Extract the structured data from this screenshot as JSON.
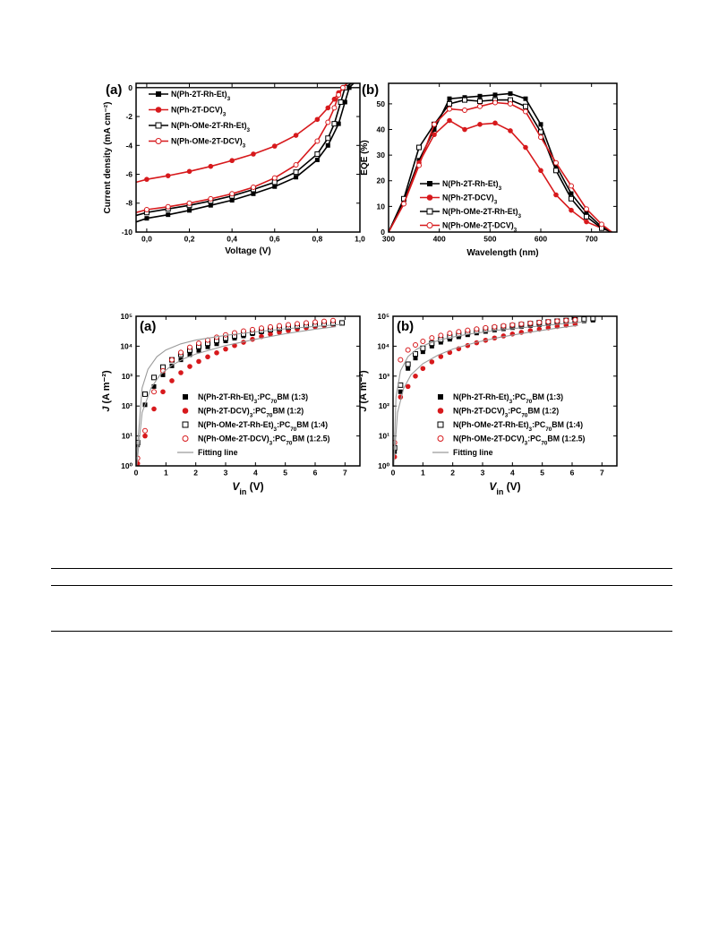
{
  "chart_data": [
    {
      "type": "line",
      "panel_label": "(a)",
      "xlabel": "Voltage (V)",
      "ylabel": "Current density (mA cm⁻²)",
      "xlim": [
        -0.05,
        1.0
      ],
      "ylim": [
        -10,
        0.3
      ],
      "xticks": [
        0.0,
        0.2,
        0.4,
        0.6,
        0.8,
        1.0
      ],
      "xtick_labels": [
        "0,0",
        "0,2",
        "0,4",
        "0,6",
        "0,8",
        "1,0"
      ],
      "yticks": [
        0,
        -2,
        -4,
        -6,
        -8,
        -10
      ],
      "ytick_labels": [
        "0",
        "-2",
        "-4",
        "-6",
        "-8",
        "-10"
      ],
      "legend_position": "top-left",
      "zero_line": true,
      "series": [
        {
          "name": "N(Ph-2T-Rh-Et)3",
          "color": "#000000",
          "marker": "filled-square",
          "x": [
            -0.05,
            0.0,
            0.1,
            0.2,
            0.3,
            0.4,
            0.5,
            0.6,
            0.7,
            0.8,
            0.85,
            0.9,
            0.93,
            0.95,
            0.97
          ],
          "y": [
            -9.3,
            -9.05,
            -8.8,
            -8.5,
            -8.15,
            -7.8,
            -7.35,
            -6.85,
            -6.2,
            -5.0,
            -4.0,
            -2.5,
            -1.0,
            0.0,
            0.3
          ]
        },
        {
          "name": "N(Ph-2T-DCV)3",
          "color": "#d7191c",
          "marker": "filled-circle",
          "x": [
            -0.05,
            0.0,
            0.1,
            0.2,
            0.3,
            0.4,
            0.5,
            0.6,
            0.7,
            0.8,
            0.85,
            0.88,
            0.9,
            0.92,
            0.94
          ],
          "y": [
            -6.55,
            -6.35,
            -6.1,
            -5.8,
            -5.45,
            -5.05,
            -4.6,
            -4.05,
            -3.3,
            -2.2,
            -1.4,
            -0.8,
            -0.35,
            0.0,
            0.3
          ]
        },
        {
          "name": "N(Ph-OMe-2T-Rh-Et)3",
          "color": "#000000",
          "marker": "open-square",
          "x": [
            -0.05,
            0.0,
            0.1,
            0.2,
            0.3,
            0.4,
            0.5,
            0.6,
            0.7,
            0.8,
            0.85,
            0.88,
            0.91,
            0.93,
            0.96
          ],
          "y": [
            -8.85,
            -8.65,
            -8.4,
            -8.15,
            -7.85,
            -7.5,
            -7.05,
            -6.55,
            -5.85,
            -4.6,
            -3.5,
            -2.5,
            -1.0,
            0.0,
            0.3
          ]
        },
        {
          "name": "N(Ph-OMe-2T-DCV)3",
          "color": "#d7191c",
          "marker": "open-circle",
          "x": [
            -0.05,
            0.0,
            0.1,
            0.2,
            0.3,
            0.4,
            0.5,
            0.6,
            0.7,
            0.8,
            0.85,
            0.88,
            0.9,
            0.92,
            0.94
          ],
          "y": [
            -8.65,
            -8.45,
            -8.25,
            -8.0,
            -7.7,
            -7.35,
            -6.9,
            -6.25,
            -5.35,
            -3.7,
            -2.4,
            -1.4,
            -0.5,
            0.0,
            0.3
          ]
        }
      ]
    },
    {
      "type": "line",
      "panel_label": "(b)",
      "xlabel": "Wavelength (nm)",
      "ylabel": "EQE (%)",
      "xlim": [
        300,
        750
      ],
      "ylim": [
        0,
        58
      ],
      "xticks": [
        300,
        400,
        500,
        600,
        700
      ],
      "yticks": [
        0,
        10,
        20,
        30,
        40,
        50
      ],
      "legend_position": "bottom-center",
      "series": [
        {
          "name": "N(Ph-2T-Rh-Et)3",
          "color": "#000000",
          "marker": "filled-square",
          "x": [
            300,
            330,
            360,
            390,
            420,
            450,
            480,
            510,
            540,
            570,
            600,
            630,
            660,
            690,
            720,
            740
          ],
          "y": [
            0,
            12,
            28,
            40,
            52,
            52.5,
            53,
            53.5,
            54,
            52,
            42,
            26,
            15,
            7.5,
            2,
            0
          ]
        },
        {
          "name": "N(Ph-2T-DCV)3",
          "color": "#d7191c",
          "marker": "filled-circle",
          "x": [
            300,
            330,
            360,
            390,
            420,
            450,
            480,
            510,
            540,
            570,
            600,
            630,
            660,
            690,
            720,
            740
          ],
          "y": [
            0,
            11,
            27,
            38,
            43.5,
            40,
            42,
            42.5,
            39.5,
            33,
            24,
            14.5,
            8.5,
            4,
            1.5,
            0
          ]
        },
        {
          "name": "N(Ph-OMe-2T-Rh-Et)3",
          "color": "#000000",
          "marker": "open-square",
          "x": [
            300,
            330,
            360,
            390,
            420,
            450,
            480,
            510,
            540,
            570,
            600,
            630,
            660,
            690,
            720,
            740
          ],
          "y": [
            0,
            13,
            33,
            42,
            50,
            51.5,
            51,
            51.5,
            51.5,
            49,
            39,
            24,
            13,
            6,
            1.5,
            0
          ]
        },
        {
          "name": "N(Ph-OMe-2T-DCV)3",
          "color": "#d7191c",
          "marker": "open-circle",
          "x": [
            300,
            330,
            360,
            390,
            420,
            450,
            480,
            510,
            540,
            570,
            600,
            630,
            660,
            690,
            720,
            740
          ],
          "y": [
            0,
            11,
            26,
            42,
            48,
            47.5,
            49,
            50.5,
            50,
            47,
            37,
            27,
            18,
            9,
            3,
            0
          ]
        }
      ]
    },
    {
      "type": "scatter",
      "panel_label": "(a)",
      "xlabel": "V",
      "xlabel_sub": "in",
      "xlabel_unit": " (V)",
      "ylabel": "J (A m⁻²)",
      "y_scale": "log",
      "xlim": [
        0,
        7.5
      ],
      "ylim": [
        1,
        100000
      ],
      "xticks": [
        0,
        1,
        2,
        3,
        4,
        5,
        6,
        7
      ],
      "yticks": [
        1,
        10,
        100,
        1000,
        10000,
        100000
      ],
      "ytick_labels": [
        "10⁰",
        "10¹",
        "10²",
        "10³",
        "10⁴",
        "10⁵"
      ],
      "legend_position": "bottom-right",
      "series": [
        {
          "name": "N(Ph-2T-Rh-Et)3:PC70BM (1:3)",
          "color": "#000000",
          "marker": "filled-square",
          "x": [
            0.05,
            0.3,
            0.6,
            0.9,
            1.2,
            1.5,
            1.8,
            2.1,
            2.4,
            2.7,
            3.0,
            3.3,
            3.6,
            3.9,
            4.2,
            4.5,
            4.8,
            5.1,
            5.4,
            5.7,
            6.0,
            6.3,
            6.6
          ],
          "y": [
            5,
            110,
            450,
            1100,
            2200,
            3500,
            5200,
            7200,
            9500,
            12000,
            15000,
            18500,
            22000,
            26000,
            30000,
            34000,
            38000,
            42000,
            46000,
            50000,
            54000,
            57000,
            60000
          ]
        },
        {
          "name": "N(Ph-2T-DCV)3:PC70BM (1:2)",
          "color": "#d7191c",
          "marker": "filled-circle",
          "x": [
            0.05,
            0.3,
            0.6,
            0.9,
            1.2,
            1.5,
            1.8,
            2.1,
            2.4,
            2.7,
            3.0,
            3.3,
            3.6,
            3.9,
            4.2,
            4.5,
            4.8,
            5.1,
            5.4,
            5.7,
            6.0,
            6.3,
            6.6
          ],
          "y": [
            1.2,
            10,
            80,
            300,
            700,
            1300,
            2100,
            3100,
            4400,
            6000,
            8000,
            10500,
            13500,
            17000,
            21000,
            25000,
            29000,
            33000,
            37000,
            41000,
            45000,
            49000,
            53000
          ]
        },
        {
          "name": "N(Ph-OMe-2T-Rh-Et)3:PC70BM (1:4)",
          "color": "#000000",
          "marker": "open-square",
          "x": [
            0.05,
            0.3,
            0.6,
            0.9,
            1.2,
            1.5,
            1.8,
            2.1,
            2.4,
            2.7,
            3.0,
            3.3,
            3.6,
            3.9,
            4.2,
            4.5,
            4.8,
            5.1,
            5.4,
            5.7,
            6.0,
            6.3,
            6.6,
            6.9
          ],
          "y": [
            6,
            250,
            900,
            2000,
            3500,
            5300,
            7400,
            9800,
            12500,
            15500,
            18500,
            22000,
            25500,
            29000,
            32500,
            36000,
            39500,
            43000,
            46500,
            50000,
            53000,
            56000,
            58000,
            60000
          ]
        },
        {
          "name": "N(Ph-OMe-2T-DCV)3:PC70BM (1:2.5)",
          "color": "#d7191c",
          "marker": "open-circle",
          "x": [
            0.05,
            0.3,
            0.6,
            0.9,
            1.2,
            1.5,
            1.8,
            2.1,
            2.4,
            2.7,
            3.0,
            3.3,
            3.6,
            3.9,
            4.2,
            4.5,
            4.8,
            5.1,
            5.4,
            5.7,
            6.0,
            6.3,
            6.6
          ],
          "y": [
            1.8,
            15,
            300,
            1500,
            3500,
            6200,
            9200,
            12500,
            16000,
            20000,
            24000,
            28000,
            32000,
            36000,
            40000,
            44000,
            48000,
            52000,
            56000,
            60000,
            64000,
            68000,
            72000
          ]
        },
        {
          "name": "Fitting line",
          "color": "#9a9a9a",
          "marker": "line-only",
          "curves": [
            {
              "x": [
                0.02,
                0.2,
                0.4,
                0.7,
                1.0,
                1.5,
                2.0,
                3.0,
                4.0,
                5.0,
                6.0,
                6.9
              ],
              "y": [
                2,
                400,
                1700,
                4500,
                7500,
                12000,
                16000,
                23000,
                30000,
                38000,
                46000,
                54000
              ]
            },
            {
              "x": [
                0.02,
                0.2,
                0.5,
                0.8,
                1.2,
                1.6,
                2.0,
                3.0,
                4.0,
                5.0,
                6.0,
                6.7
              ],
              "y": [
                1,
                60,
                400,
                1100,
                2300,
                3800,
                5500,
                10500,
                17000,
                26000,
                37000,
                45000
              ]
            }
          ]
        }
      ]
    },
    {
      "type": "scatter",
      "panel_label": "(b)",
      "xlabel": "V",
      "xlabel_sub": "in",
      "xlabel_unit": " (V)",
      "ylabel": "J (A m⁻²)",
      "y_scale": "log",
      "xlim": [
        0,
        7.5
      ],
      "ylim": [
        1,
        100000
      ],
      "xticks": [
        0,
        1,
        2,
        3,
        4,
        5,
        6,
        7
      ],
      "yticks": [
        1,
        10,
        100,
        1000,
        10000,
        100000
      ],
      "ytick_labels": [
        "10⁰",
        "10¹",
        "10²",
        "10³",
        "10⁴",
        "10⁵"
      ],
      "legend_position": "bottom-right",
      "series": [
        {
          "name": "N(Ph-2T-Rh-Et)3:PC70BM (1:3)",
          "color": "#000000",
          "marker": "filled-square",
          "x": [
            0.05,
            0.25,
            0.5,
            0.75,
            1.0,
            1.3,
            1.6,
            1.9,
            2.2,
            2.5,
            2.8,
            3.1,
            3.4,
            3.7,
            4.0,
            4.3,
            4.6,
            4.9,
            5.2,
            5.5,
            5.8,
            6.1,
            6.4,
            6.7
          ],
          "y": [
            3,
            300,
            1800,
            4000,
            6500,
            10000,
            13500,
            17000,
            20500,
            24000,
            27500,
            31000,
            34500,
            38000,
            41500,
            45000,
            48500,
            52000,
            55500,
            59000,
            62000,
            66000,
            70000,
            74000
          ]
        },
        {
          "name": "N(Ph-2T-DCV)3:PC70BM (1:2)",
          "color": "#d7191c",
          "marker": "filled-circle",
          "x": [
            0.05,
            0.25,
            0.5,
            0.75,
            1.0,
            1.3,
            1.6,
            1.9,
            2.2,
            2.5,
            2.8,
            3.1,
            3.4,
            3.7,
            4.0,
            4.3,
            4.6,
            4.9,
            5.2,
            5.5,
            5.8,
            6.1
          ],
          "y": [
            2,
            200,
            450,
            1000,
            1800,
            3000,
            4500,
            6200,
            8200,
            10500,
            13000,
            15800,
            18800,
            22000,
            25500,
            29000,
            33000,
            37000,
            41000,
            45500,
            50000,
            55000
          ]
        },
        {
          "name": "N(Ph-OMe-2T-Rh-Et)3:PC70BM (1:4)",
          "color": "#000000",
          "marker": "open-square",
          "x": [
            0.05,
            0.25,
            0.5,
            0.75,
            1.0,
            1.3,
            1.6,
            1.9,
            2.2,
            2.5,
            2.8,
            3.1,
            3.4,
            3.7,
            4.0,
            4.3,
            4.6,
            4.9,
            5.2,
            5.5,
            5.8,
            6.1,
            6.4,
            6.7
          ],
          "y": [
            4,
            500,
            2500,
            5500,
            8500,
            12500,
            16500,
            20500,
            24500,
            28500,
            32500,
            36500,
            40500,
            44500,
            48500,
            52500,
            56500,
            60500,
            64500,
            68500,
            72500,
            76500,
            80500,
            84000
          ]
        },
        {
          "name": "N(Ph-OMe-2T-DCV)3:PC70BM (1:2.5)",
          "color": "#d7191c",
          "marker": "open-circle",
          "x": [
            0.05,
            0.25,
            0.5,
            0.75,
            1.0,
            1.3,
            1.6,
            1.9,
            2.2,
            2.5,
            2.8,
            3.1,
            3.4,
            3.7,
            4.0,
            4.3,
            4.6,
            4.9,
            5.2,
            5.5,
            5.8,
            6.1
          ],
          "y": [
            6,
            3500,
            7500,
            11000,
            14500,
            19000,
            23000,
            27000,
            30500,
            34000,
            37500,
            41000,
            44500,
            48000,
            51500,
            55000,
            58500,
            62000,
            65500,
            69000,
            72500,
            76000
          ]
        },
        {
          "name": "Fitting line",
          "color": "#9a9a9a",
          "marker": "line-only",
          "curves": [
            {
              "x": [
                0.02,
                0.1,
                0.25,
                0.5,
                0.8,
                1.2,
                1.8,
                2.5,
                3.5,
                4.5,
                5.5,
                6.5
              ],
              "y": [
                1,
                200,
                1500,
                4500,
                8000,
                12500,
                18500,
                25000,
                34000,
                43000,
                54000,
                66000
              ]
            },
            {
              "x": [
                0.02,
                0.15,
                0.35,
                0.6,
                1.0,
                1.5,
                2.0,
                2.8,
                3.6,
                4.5,
                5.4,
                6.2
              ],
              "y": [
                1,
                60,
                380,
                1100,
                2600,
                5000,
                8000,
                13500,
                20000,
                28500,
                39000,
                50000
              ]
            }
          ]
        }
      ]
    }
  ]
}
